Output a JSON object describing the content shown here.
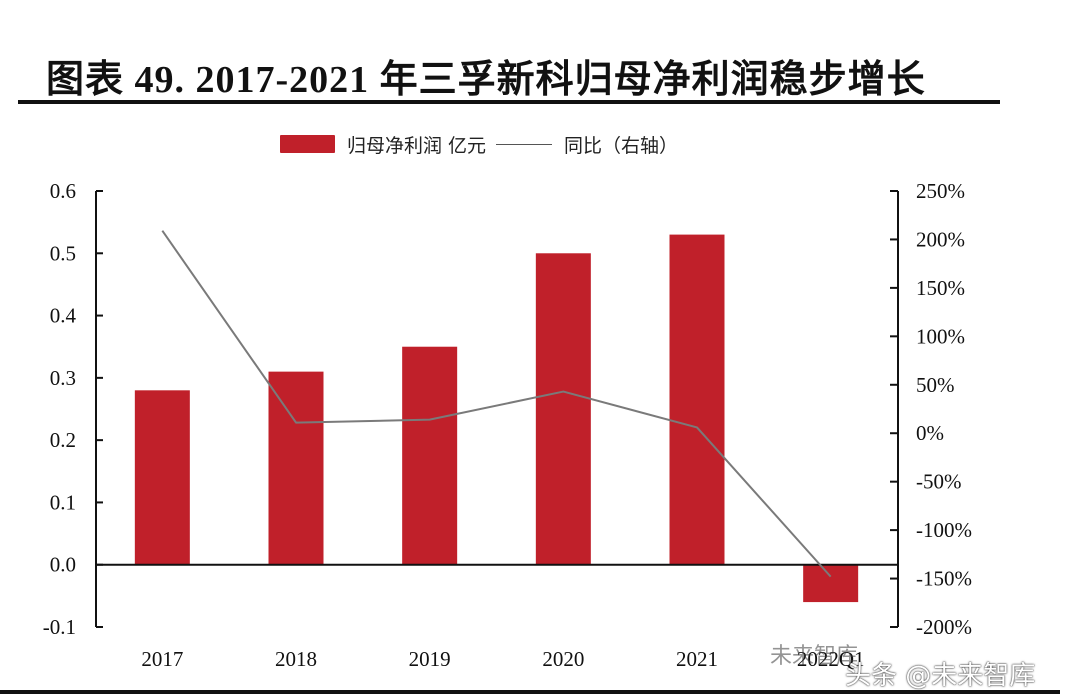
{
  "title": "图表 49. 2017-2021 年三孚新科归母净利润稳步增长",
  "legend": {
    "bar_label": "归母净利润 亿元",
    "line_label": "同比（右轴）"
  },
  "watermark": {
    "top": "未来智库",
    "bottom": "头条 @未来智库"
  },
  "colors": {
    "bar": "#c0202a",
    "line": "#7a7a7a",
    "axis": "#111111"
  },
  "chart_data": {
    "type": "bar",
    "title": "图表 49. 2017-2021 年三孚新科归母净利润稳步增长",
    "xlabel": "",
    "ylabel": "归母净利润 亿元",
    "y2label": "同比（右轴）",
    "categories": [
      "2017",
      "2018",
      "2019",
      "2020",
      "2021",
      "2022Q1"
    ],
    "series": [
      {
        "name": "归母净利润 亿元",
        "type": "bar",
        "axis": "left",
        "values": [
          0.28,
          0.31,
          0.35,
          0.5,
          0.53,
          -0.06
        ]
      },
      {
        "name": "同比（右轴）",
        "type": "line",
        "axis": "right",
        "values": [
          209,
          11,
          14,
          43,
          6,
          -148
        ],
        "unit": "%"
      }
    ],
    "ylim": [
      -0.1,
      0.6
    ],
    "y2lim": [
      -200,
      250
    ],
    "yticks": [
      "0.6",
      "0.5",
      "0.4",
      "0.3",
      "0.2",
      "0.1",
      "0.0",
      "-0.1"
    ],
    "y2ticks": [
      "250%",
      "200%",
      "150%",
      "100%",
      "50%",
      "0%",
      "-50%",
      "-100%",
      "-150%",
      "-200%"
    ],
    "grid": false,
    "legend_position": "top"
  }
}
